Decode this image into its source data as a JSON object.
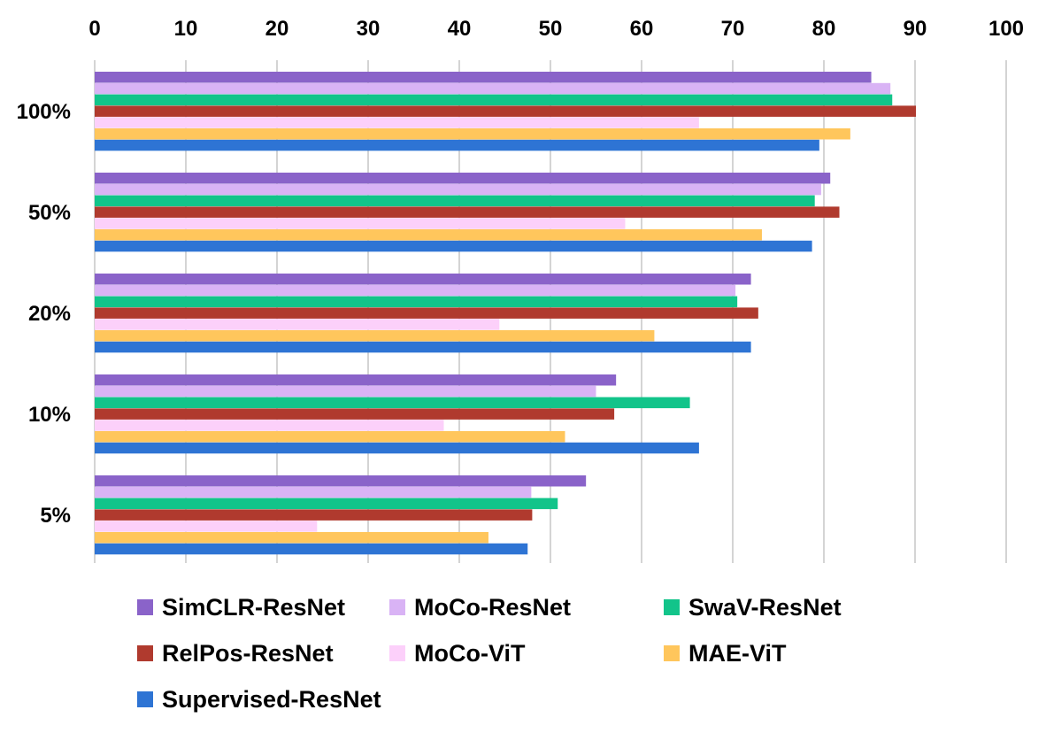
{
  "chart_data": {
    "type": "bar",
    "orientation": "horizontal",
    "title": "",
    "xlabel": "",
    "ylabel": "",
    "xlim": [
      0,
      100
    ],
    "x_ticks": [
      0,
      10,
      20,
      30,
      40,
      50,
      60,
      70,
      80,
      90,
      100
    ],
    "x_axis_position": "top",
    "grid": "vertical",
    "legend_position": "bottom",
    "categories": [
      "100%",
      "50%",
      "20%",
      "10%",
      "5%"
    ],
    "series": [
      {
        "name": "SimCLR-ResNet",
        "color": "#8a63c9",
        "values": [
          85.2,
          80.7,
          72.0,
          57.2,
          53.9
        ]
      },
      {
        "name": "MoCo-ResNet",
        "color": "#d9b3f5",
        "values": [
          87.3,
          79.7,
          70.3,
          55.0,
          47.9
        ]
      },
      {
        "name": "SwaV-ResNet",
        "color": "#12c48a",
        "values": [
          87.5,
          79.0,
          70.5,
          65.3,
          50.8
        ]
      },
      {
        "name": "RelPos-ResNet",
        "color": "#b03a2e",
        "values": [
          90.1,
          81.7,
          72.8,
          57.0,
          48.0
        ]
      },
      {
        "name": "MoCo-ViT",
        "color": "#fcd0fa",
        "values": [
          66.3,
          58.2,
          44.4,
          38.3,
          24.4
        ]
      },
      {
        "name": "MAE-ViT",
        "color": "#ffc65c",
        "values": [
          82.9,
          73.2,
          61.4,
          51.6,
          43.2
        ]
      },
      {
        "name": "Supervised-ResNet",
        "color": "#2e74d4",
        "values": [
          79.5,
          78.7,
          72.0,
          66.3,
          47.5
        ]
      }
    ]
  }
}
